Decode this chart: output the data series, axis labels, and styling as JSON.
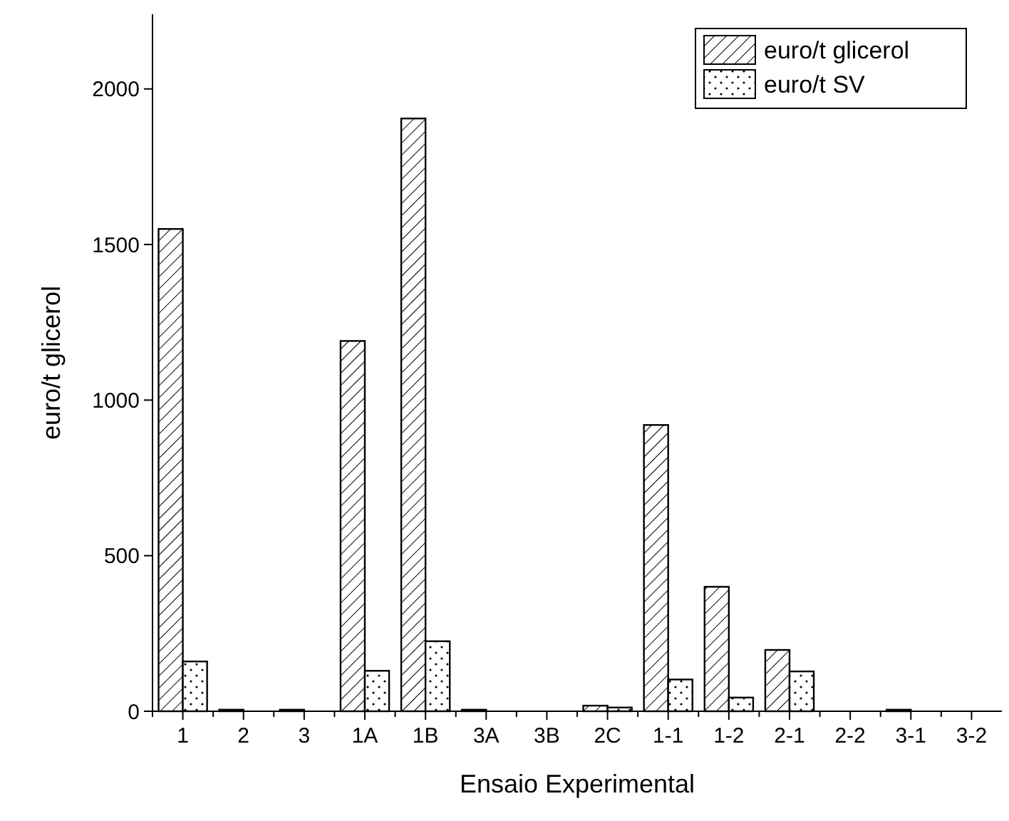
{
  "chart_data": {
    "type": "bar",
    "xlabel": "Ensaio Experimental",
    "ylabel": "euro/t glicerol",
    "categories": [
      "1",
      "2",
      "3",
      "1A",
      "1B",
      "3A",
      "3B",
      "2C",
      "1-1",
      "1-2",
      "2-1",
      "2-2",
      "3-1",
      "3-2"
    ],
    "series": [
      {
        "name": "euro/t glicerol",
        "color": "#000000",
        "values": [
          1550,
          5,
          5,
          1190,
          1905,
          5,
          0,
          18,
          920,
          400,
          197,
          0,
          5,
          0
        ]
      },
      {
        "name": "euro/t SV",
        "color": "#000000",
        "values": [
          160,
          0,
          0,
          130,
          225,
          0,
          0,
          12,
          102,
          44,
          128,
          0,
          0,
          0
        ]
      }
    ],
    "ylim": [
      0,
      2240
    ],
    "yticks": [
      0,
      500,
      1000,
      1500,
      2000
    ],
    "grid": false,
    "legend": "top right"
  }
}
